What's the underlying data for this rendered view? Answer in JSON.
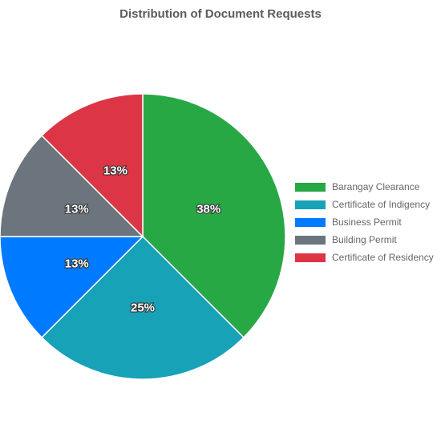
{
  "chart_data": {
    "type": "pie",
    "title": "Distribution of Document Requests",
    "categories": [
      "Barangay Clearance",
      "Certificate of Indigency",
      "Business Permit",
      "Building Permit",
      "Certificate of Residency"
    ],
    "values": [
      3,
      2,
      1,
      1,
      1
    ],
    "percent_labels": [
      "38%",
      "25%",
      "13%",
      "13%",
      "13%"
    ],
    "colors": [
      "#28a745",
      "#17a2b8",
      "#007bff",
      "#6c757d",
      "#dc3545"
    ],
    "legend_position": "right"
  }
}
